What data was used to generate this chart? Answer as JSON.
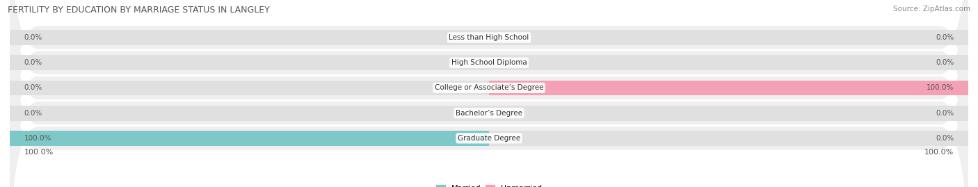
{
  "title": "FERTILITY BY EDUCATION BY MARRIAGE STATUS IN LANGLEY",
  "source": "Source: ZipAtlas.com",
  "categories": [
    "Less than High School",
    "High School Diploma",
    "College or Associate’s Degree",
    "Bachelor’s Degree",
    "Graduate Degree"
  ],
  "married_values": [
    0.0,
    0.0,
    0.0,
    0.0,
    100.0
  ],
  "unmarried_values": [
    0.0,
    0.0,
    100.0,
    0.0,
    0.0
  ],
  "married_color": "#7EC8C8",
  "unmarried_color": "#F4A0B5",
  "bar_bg_color": "#E0E0E0",
  "row_bg_color": "#EFEFEF",
  "background_color": "#FFFFFF",
  "label_color": "#555555",
  "title_color": "#555555",
  "source_color": "#888888",
  "bar_height": 0.6,
  "xlim": 100,
  "figsize": [
    14.06,
    2.69
  ],
  "dpi": 100
}
